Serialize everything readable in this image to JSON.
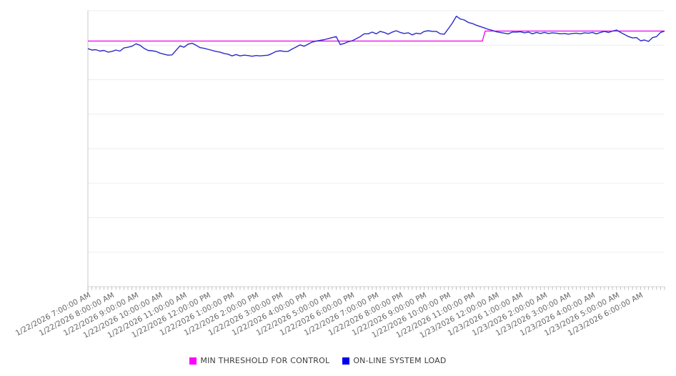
{
  "chart_data": {
    "type": "line",
    "title": "",
    "xlabel": "",
    "ylabel": "",
    "ylim": [
      0,
      8
    ],
    "y_gridline_divisions": 8,
    "y_axis_labels_visible": false,
    "grid": "horizontal",
    "legend_position": "bottom",
    "x_start": "1/22/2026 7:00:00 AM",
    "x_end": "1/23/2026 7:00:00 AM",
    "total_minutes": 1440,
    "sample_interval_minutes": 10,
    "minor_tick_interval_minutes": 10,
    "x_tick_labels": [
      "1/22/2026 7:00:00 AM",
      "1/22/2026 8:00:00 AM",
      "1/22/2026 9:00:00 AM",
      "1/22/2026 10:00:00 AM",
      "1/22/2026 11:00:00 AM",
      "1/22/2026 12:00:00 PM",
      "1/22/2026 1:00:00 PM",
      "1/22/2026 2:00:00 PM",
      "1/22/2026 3:00:00 PM",
      "1/22/2026 4:00:00 PM",
      "1/22/2026 5:00:00 PM",
      "1/22/2026 6:00:00 PM",
      "1/22/2026 7:00:00 PM",
      "1/22/2026 8:00:00 PM",
      "1/22/2026 9:00:00 PM",
      "1/22/2026 10:00:00 PM",
      "1/22/2026 11:00:00 PM",
      "1/23/2026 12:00:00 AM",
      "1/23/2026 1:00:00 AM",
      "1/23/2026 2:00:00 AM",
      "1/23/2026 3:00:00 AM",
      "1/23/2026 4:00:00 AM",
      "1/23/2026 5:00:00 AM",
      "1/23/2026 6:00:00 AM"
    ],
    "series": [
      {
        "name": "MIN THRESHOLD FOR CONTROL",
        "type": "step",
        "color": "#ff00ff",
        "line_color": "#ee12ee",
        "step_at_minute": 985,
        "value_before_step": 7.12,
        "value_after_step": 7.41
      },
      {
        "name": "ON-LINE SYSTEM LOAD",
        "type": "line",
        "color": "#0000ee",
        "line_color": "#2a2ac9",
        "values": [
          6.9,
          6.86,
          6.87,
          6.83,
          6.85,
          6.8,
          6.82,
          6.86,
          6.83,
          6.92,
          6.94,
          6.97,
          7.04,
          7.0,
          6.91,
          6.85,
          6.84,
          6.82,
          6.77,
          6.74,
          6.71,
          6.72,
          6.85,
          6.98,
          6.94,
          7.03,
          7.06,
          7.0,
          6.93,
          6.91,
          6.88,
          6.85,
          6.82,
          6.8,
          6.76,
          6.74,
          6.69,
          6.73,
          6.69,
          6.71,
          6.7,
          6.68,
          6.7,
          6.69,
          6.7,
          6.71,
          6.76,
          6.82,
          6.84,
          6.82,
          6.82,
          6.89,
          6.95,
          7.01,
          6.97,
          7.03,
          7.09,
          7.12,
          7.14,
          7.16,
          7.19,
          7.22,
          7.25,
          7.02,
          7.05,
          7.1,
          7.13,
          7.19,
          7.25,
          7.33,
          7.33,
          7.38,
          7.33,
          7.4,
          7.37,
          7.32,
          7.38,
          7.42,
          7.37,
          7.34,
          7.36,
          7.3,
          7.35,
          7.33,
          7.4,
          7.42,
          7.4,
          7.4,
          7.33,
          7.32,
          7.48,
          7.64,
          7.84,
          7.76,
          7.73,
          7.66,
          7.63,
          7.58,
          7.54,
          7.5,
          7.46,
          7.43,
          7.39,
          7.37,
          7.35,
          7.33,
          7.38,
          7.38,
          7.39,
          7.36,
          7.38,
          7.33,
          7.37,
          7.34,
          7.37,
          7.34,
          7.36,
          7.35,
          7.33,
          7.34,
          7.32,
          7.34,
          7.35,
          7.33,
          7.36,
          7.35,
          7.37,
          7.33,
          7.37,
          7.4,
          7.37,
          7.41,
          7.44,
          7.37,
          7.31,
          7.25,
          7.21,
          7.22,
          7.13,
          7.15,
          7.11,
          7.22,
          7.25,
          7.37,
          7.41
        ]
      }
    ],
    "legend_entries": [
      "MIN THRESHOLD FOR CONTROL",
      "ON-LINE SYSTEM LOAD"
    ]
  }
}
